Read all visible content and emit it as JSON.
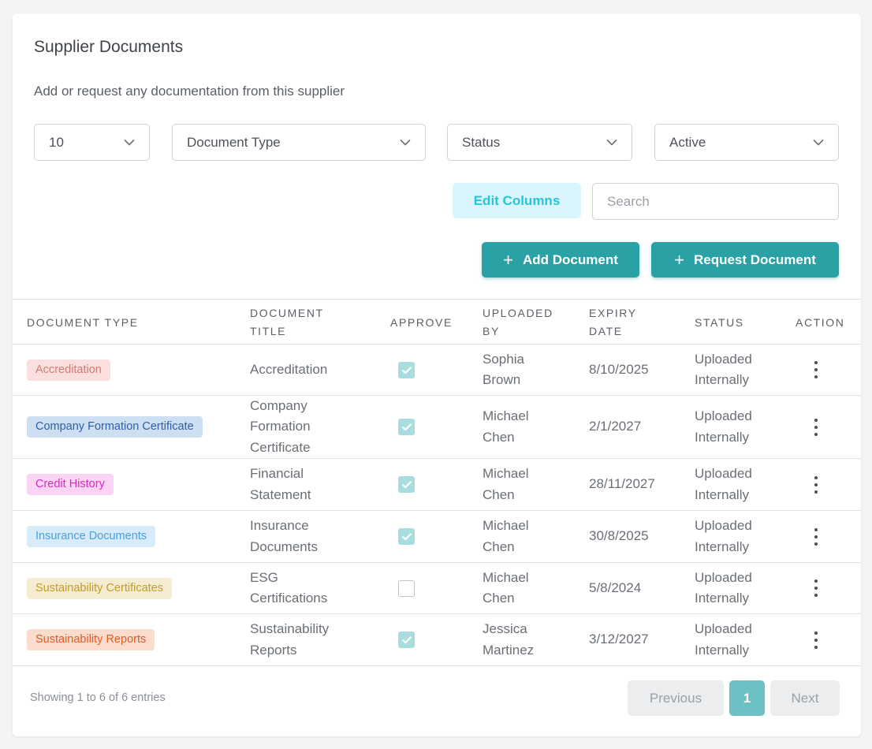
{
  "header": {
    "title": "Supplier Documents",
    "subtitle": "Add or request any documentation from this supplier"
  },
  "filters": {
    "page_size": "10",
    "document_type": "Document Type",
    "status": "Status",
    "active": "Active"
  },
  "toolbar": {
    "edit_columns": "Edit Columns",
    "search_placeholder": "Search",
    "add_document": "Add Document",
    "request_document": "Request Document"
  },
  "table": {
    "headers": {
      "document_type": "DOCUMENT TYPE",
      "document_title_1": "DOCUMENT",
      "document_title_2": "TITLE",
      "approve": "APPROVE",
      "uploaded_by_1": "UPLOADED",
      "uploaded_by_2": "BY",
      "expiry_date_1": "EXPIRY",
      "expiry_date_2": "DATE",
      "status": "STATUS",
      "action": "ACTION"
    },
    "rows": [
      {
        "type": "Accreditation",
        "title1": "Accreditation",
        "title2": "",
        "title3": "",
        "approved": true,
        "by1": "Sophia",
        "by2": "Brown",
        "expiry": "8/10/2025",
        "status1": "Uploaded",
        "status2": "Internally",
        "badge_bg": "#f9dfdd",
        "badge_fg": "#d77a73"
      },
      {
        "type": "Company Formation Certificate",
        "title1": "Company",
        "title2": "Formation",
        "title3": "Certificate",
        "approved": true,
        "by1": "Michael",
        "by2": "Chen",
        "expiry": "2/1/2027",
        "status1": "Uploaded",
        "status2": "Internally",
        "badge_bg": "#cddff1",
        "badge_fg": "#2d5fa8"
      },
      {
        "type": "Credit History",
        "title1": "Financial",
        "title2": "Statement",
        "title3": "",
        "approved": true,
        "by1": "Michael",
        "by2": "Chen",
        "expiry": "28/11/2027",
        "status1": "Uploaded",
        "status2": "Internally",
        "badge_bg": "#fbd3f4",
        "badge_fg": "#d42fb8"
      },
      {
        "type": "Insurance Documents",
        "title1": "Insurance",
        "title2": "Documents",
        "title3": "",
        "approved": true,
        "by1": "Michael",
        "by2": "Chen",
        "expiry": "30/8/2025",
        "status1": "Uploaded",
        "status2": "Internally",
        "badge_bg": "#d8ebf9",
        "badge_fg": "#4b9ee0"
      },
      {
        "type": "Sustainability Certificates",
        "title1": "ESG",
        "title2": "Certifications",
        "title3": "",
        "approved": false,
        "by1": "Michael",
        "by2": "Chen",
        "expiry": "5/8/2024",
        "status1": "Uploaded",
        "status2": "Internally",
        "badge_bg": "#f5ecd2",
        "badge_fg": "#c49a23"
      },
      {
        "type": "Sustainability Reports",
        "title1": "Sustainability",
        "title2": "Reports",
        "title3": "",
        "approved": true,
        "by1": "Jessica",
        "by2": "Martinez",
        "expiry": "3/12/2027",
        "status1": "Uploaded",
        "status2": "Internally",
        "badge_bg": "#fbdccd",
        "badge_fg": "#e25a25"
      }
    ]
  },
  "footer": {
    "info": "Showing 1 to 6 of 6 entries",
    "previous": "Previous",
    "page": "1",
    "next": "Next"
  }
}
